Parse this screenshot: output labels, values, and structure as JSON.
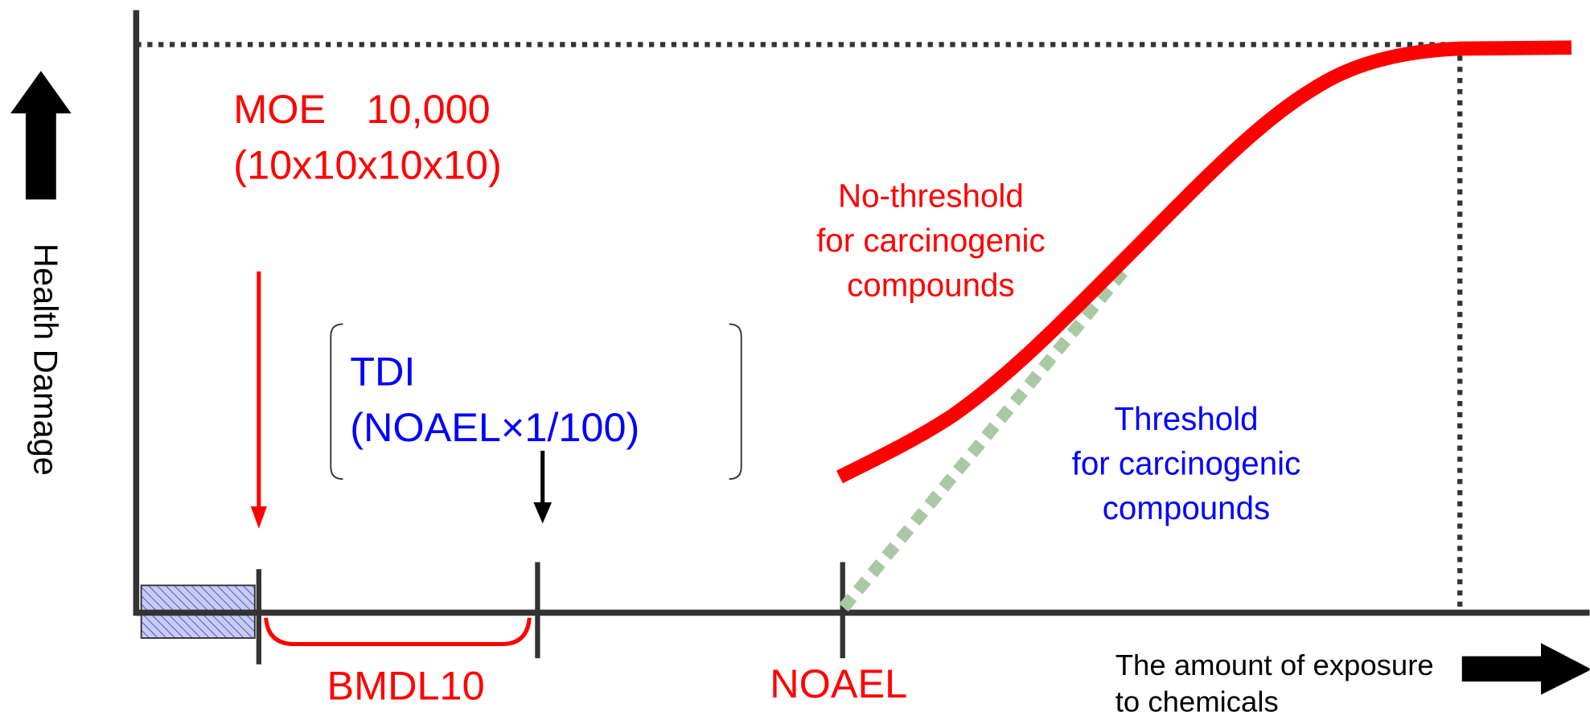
{
  "y_axis_label": "Health Damage",
  "x_axis_label": [
    "The amount of exposure",
    "to chemicals"
  ],
  "moe": [
    "MOE　10,000",
    "(10x10x10x10)"
  ],
  "tdi": [
    "TDI",
    "(NOAEL×1/100)"
  ],
  "no_threshold": [
    "No-threshold",
    "for carcinogenic",
    "compounds"
  ],
  "threshold": [
    "Threshold",
    "for carcinogenic",
    "compounds"
  ],
  "bmdl": "BMDL10",
  "noael": "NOAEL"
}
